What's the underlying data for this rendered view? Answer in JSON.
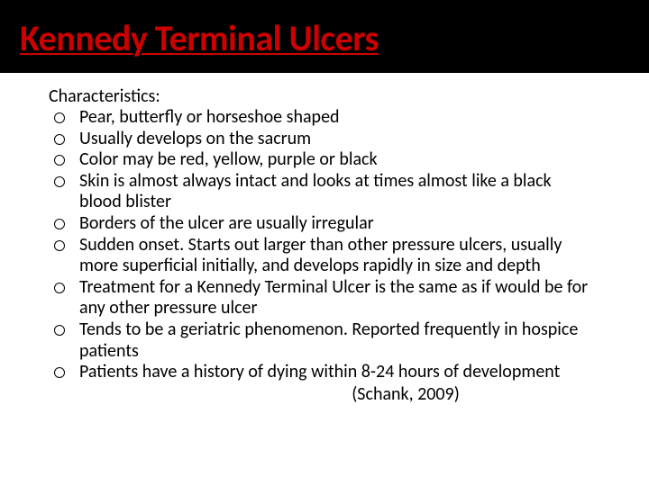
{
  "title": "Kennedy Terminal Ulcers",
  "title_color": "#cc0000",
  "title_fontsize": 40,
  "background_color": "#ffffff",
  "title_bar_color": "#000000",
  "body_text_color": "#000000",
  "body_fontsize": 20,
  "bullet_style": "hollow-circle",
  "subhead": "Characteristics:",
  "items": [
    "Pear, butterfly or horseshoe shaped",
    "Usually develops on the sacrum",
    "Color may be red, yellow, purple or black",
    "Skin is almost always intact and looks at times almost like a black blood blister",
    "Borders of the ulcer are usually irregular",
    "Sudden onset. Starts out larger than other pressure ulcers, usually more superficial initially, and develops rapidly in size and depth",
    "Treatment for a Kennedy Terminal Ulcer is the same as if would be for any other pressure ulcer",
    "Tends to be a geriatric phenomenon. Reported frequently in hospice patients",
    "Patients have a history of dying within 8-24 hours of development"
  ],
  "citation": "(Schank, 2009)"
}
